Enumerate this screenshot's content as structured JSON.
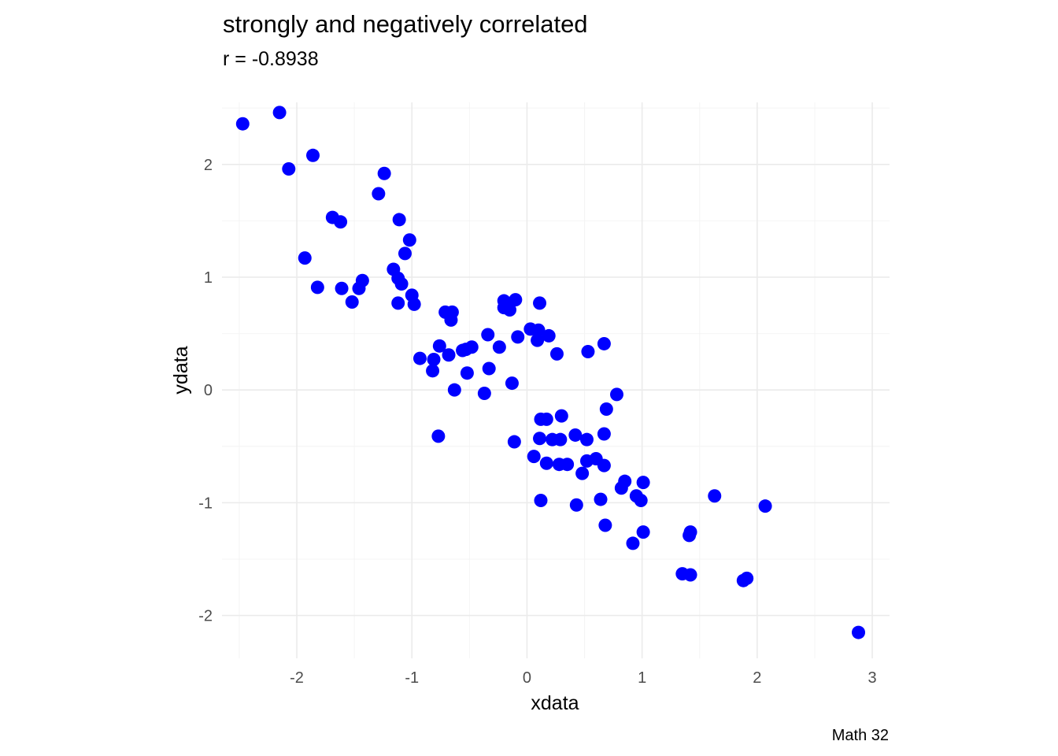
{
  "chart_data": {
    "type": "scatter",
    "title": "strongly and negatively correlated",
    "subtitle": "r = -0.8938",
    "xlabel": "xdata",
    "ylabel": "ydata",
    "caption": "Math 32",
    "xlim": [
      -2.65,
      3.15
    ],
    "ylim": [
      -2.38,
      2.55
    ],
    "xticks": [
      -2,
      -1,
      0,
      1,
      2,
      3
    ],
    "yticks": [
      -2,
      -1,
      0,
      1,
      2
    ],
    "xtick_labels": [
      "-2",
      "-1",
      "0",
      "1",
      "2",
      "3"
    ],
    "ytick_labels": [
      "-2",
      "-1",
      "0",
      "1",
      "2"
    ],
    "grid": true,
    "point_color": "#0000ff",
    "points": [
      [
        -2.47,
        2.36
      ],
      [
        -2.15,
        2.46
      ],
      [
        -2.07,
        1.96
      ],
      [
        -1.86,
        2.08
      ],
      [
        -1.93,
        1.17
      ],
      [
        -1.82,
        0.91
      ],
      [
        -1.69,
        1.53
      ],
      [
        -1.62,
        1.49
      ],
      [
        -1.61,
        0.9
      ],
      [
        -1.52,
        0.78
      ],
      [
        -1.46,
        0.9
      ],
      [
        -1.43,
        0.97
      ],
      [
        -1.24,
        1.92
      ],
      [
        -1.29,
        1.74
      ],
      [
        -1.11,
        1.51
      ],
      [
        -1.02,
        1.33
      ],
      [
        -1.06,
        1.21
      ],
      [
        -1.16,
        1.07
      ],
      [
        -1.12,
        0.99
      ],
      [
        -1.09,
        0.94
      ],
      [
        -1.12,
        0.77
      ],
      [
        -1.0,
        0.84
      ],
      [
        -0.98,
        0.76
      ],
      [
        -0.71,
        0.69
      ],
      [
        -0.65,
        0.69
      ],
      [
        -0.66,
        0.62
      ],
      [
        -0.76,
        0.39
      ],
      [
        -0.68,
        0.31
      ],
      [
        -0.93,
        0.28
      ],
      [
        -0.81,
        0.27
      ],
      [
        -0.82,
        0.17
      ],
      [
        -0.56,
        0.35
      ],
      [
        -0.53,
        0.36
      ],
      [
        -0.48,
        0.38
      ],
      [
        -0.34,
        0.49
      ],
      [
        -0.24,
        0.38
      ],
      [
        -0.33,
        0.19
      ],
      [
        -0.52,
        0.15
      ],
      [
        -0.63,
        0.0
      ],
      [
        -0.37,
        -0.03
      ],
      [
        -0.77,
        -0.41
      ],
      [
        -0.2,
        0.79
      ],
      [
        -0.2,
        0.73
      ],
      [
        -0.15,
        0.71
      ],
      [
        -0.1,
        0.8
      ],
      [
        -0.08,
        0.47
      ],
      [
        -0.13,
        0.06
      ],
      [
        -0.11,
        -0.46
      ],
      [
        0.03,
        0.54
      ],
      [
        0.09,
        0.44
      ],
      [
        0.1,
        0.53
      ],
      [
        0.19,
        0.48
      ],
      [
        0.11,
        0.77
      ],
      [
        0.26,
        0.32
      ],
      [
        0.12,
        -0.26
      ],
      [
        0.17,
        -0.26
      ],
      [
        0.3,
        -0.23
      ],
      [
        0.11,
        -0.43
      ],
      [
        0.22,
        -0.44
      ],
      [
        0.29,
        -0.44
      ],
      [
        0.42,
        -0.4
      ],
      [
        0.52,
        -0.44
      ],
      [
        0.06,
        -0.59
      ],
      [
        0.17,
        -0.65
      ],
      [
        0.28,
        -0.66
      ],
      [
        0.35,
        -0.66
      ],
      [
        0.48,
        -0.74
      ],
      [
        0.52,
        -0.63
      ],
      [
        0.6,
        -0.61
      ],
      [
        0.67,
        -0.67
      ],
      [
        0.12,
        -0.98
      ],
      [
        0.43,
        -1.02
      ],
      [
        0.64,
        -0.97
      ],
      [
        0.53,
        0.34
      ],
      [
        0.67,
        0.41
      ],
      [
        0.67,
        -0.39
      ],
      [
        0.69,
        -0.17
      ],
      [
        0.78,
        -0.04
      ],
      [
        0.82,
        -0.87
      ],
      [
        0.85,
        -0.81
      ],
      [
        0.95,
        -0.94
      ],
      [
        0.99,
        -0.98
      ],
      [
        1.01,
        -0.82
      ],
      [
        0.68,
        -1.2
      ],
      [
        0.92,
        -1.36
      ],
      [
        1.01,
        -1.26
      ],
      [
        1.35,
        -1.63
      ],
      [
        1.42,
        -1.64
      ],
      [
        1.41,
        -1.29
      ],
      [
        1.42,
        -1.26
      ],
      [
        1.63,
        -0.94
      ],
      [
        1.88,
        -1.69
      ],
      [
        1.91,
        -1.67
      ],
      [
        2.07,
        -1.03
      ],
      [
        2.88,
        -2.15
      ]
    ]
  }
}
